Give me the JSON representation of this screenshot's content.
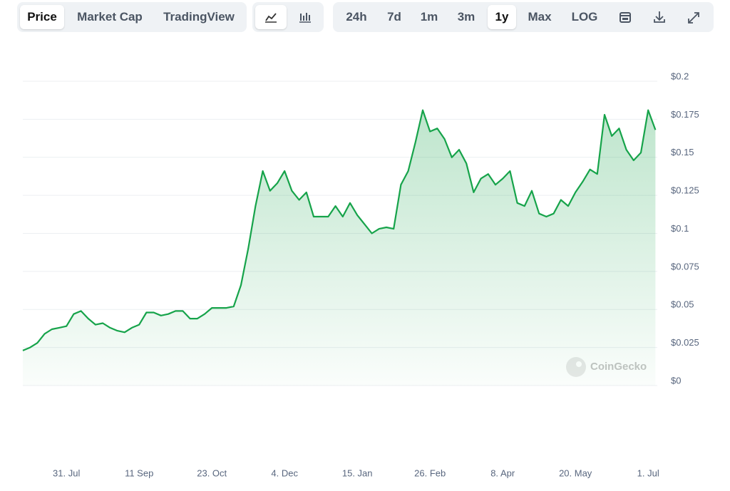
{
  "toolbar": {
    "tabs": [
      "Price",
      "Market Cap",
      "TradingView"
    ],
    "ranges": [
      "24h",
      "7d",
      "1m",
      "3m",
      "1y",
      "Max"
    ],
    "scale": "LOG"
  },
  "watermark": "CoinGecko",
  "chart_data": {
    "type": "line",
    "categories": [
      null,
      null,
      null,
      null,
      null,
      null,
      "31. Jul",
      null,
      null,
      null,
      null,
      null,
      null,
      null,
      null,
      null,
      "11 Sep",
      null,
      null,
      null,
      null,
      null,
      null,
      null,
      null,
      null,
      "23. Oct",
      null,
      null,
      null,
      null,
      null,
      null,
      null,
      null,
      null,
      "4. Dec",
      null,
      null,
      null,
      null,
      null,
      null,
      null,
      null,
      null,
      "15. Jan",
      null,
      null,
      null,
      null,
      null,
      null,
      null,
      null,
      null,
      "26. Feb",
      null,
      null,
      null,
      null,
      null,
      null,
      null,
      null,
      null,
      "8. Apr",
      null,
      null,
      null,
      null,
      null,
      null,
      null,
      null,
      null,
      "20. May",
      null,
      null,
      null,
      null,
      null,
      null,
      null,
      null,
      null,
      "1. Jul",
      null
    ],
    "series": [
      {
        "name": "Price",
        "color": "#16a34a",
        "values": [
          0.023,
          0.025,
          0.028,
          0.034,
          0.037,
          0.038,
          0.039,
          0.047,
          0.049,
          0.044,
          0.04,
          0.041,
          0.038,
          0.036,
          0.035,
          0.038,
          0.04,
          0.048,
          0.048,
          0.046,
          0.047,
          0.049,
          0.049,
          0.044,
          0.044,
          0.047,
          0.051,
          0.051,
          0.051,
          0.052,
          0.066,
          0.09,
          0.118,
          0.141,
          0.128,
          0.133,
          0.141,
          0.128,
          0.122,
          0.127,
          0.111,
          0.111,
          0.111,
          0.118,
          0.111,
          0.12,
          0.112,
          0.106,
          0.1,
          0.103,
          0.104,
          0.103,
          0.132,
          0.141,
          0.16,
          0.181,
          0.167,
          0.169,
          0.162,
          0.15,
          0.155,
          0.146,
          0.127,
          0.136,
          0.139,
          0.132,
          0.136,
          0.141,
          0.12,
          0.118,
          0.128,
          0.113,
          0.111,
          0.113,
          0.122,
          0.118,
          0.127,
          0.134,
          0.142,
          0.139,
          0.178,
          0.164,
          0.169,
          0.155,
          0.148,
          0.153,
          0.181,
          0.168
        ]
      }
    ],
    "ylim": [
      0,
      0.2
    ],
    "yticks": [
      {
        "value": 0,
        "label": "$0"
      },
      {
        "value": 0.025,
        "label": "$0.025"
      },
      {
        "value": 0.05,
        "label": "$0.05"
      },
      {
        "value": 0.075,
        "label": "$0.075"
      },
      {
        "value": 0.1,
        "label": "$0.1"
      },
      {
        "value": 0.125,
        "label": "$0.125"
      },
      {
        "value": 0.15,
        "label": "$0.15"
      },
      {
        "value": 0.175,
        "label": "$0.175"
      },
      {
        "value": 0.2,
        "label": "$0.2"
      }
    ],
    "grid": true
  }
}
